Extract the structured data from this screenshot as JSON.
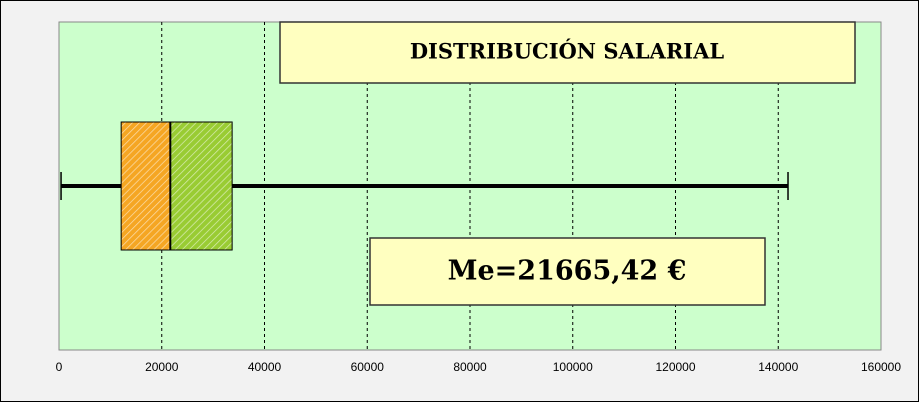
{
  "chart_data": {
    "type": "box",
    "title": "DISTRIBUCIÓN SALARIAL",
    "annotation": "Me=21665,42 €",
    "min": 400,
    "q1": 12100,
    "median": 21665.42,
    "q3": 33700,
    "max": 141900,
    "xlim": [
      0,
      160000
    ],
    "xticks": [
      0,
      20000,
      40000,
      60000,
      80000,
      100000,
      120000,
      140000,
      160000
    ],
    "grid": true,
    "lower_color": "#f5a623",
    "upper_color": "#99cc33",
    "plot_background": "#ccffcc"
  }
}
